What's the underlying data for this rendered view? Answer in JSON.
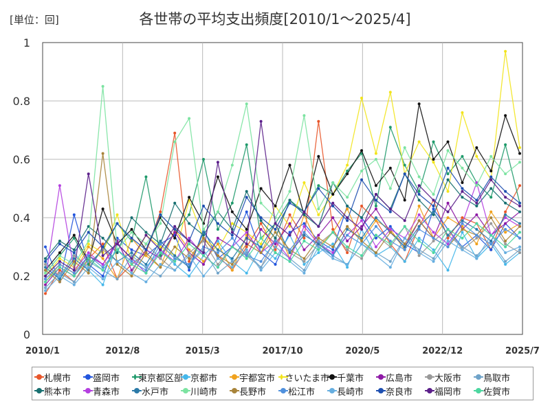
{
  "header": {
    "unit_label": "[単位：回]",
    "title": "各世帯の平均支出頻度[2010/1～2025/4]"
  },
  "chart_data": {
    "type": "line",
    "title": "各世帯の平均支出頻度[2010/1～2025/4]",
    "unit": "[単位：回]",
    "xlabel": "",
    "ylabel": "",
    "x_ticks": [
      "2010/1",
      "2012/8",
      "2015/3",
      "2017/10",
      "2020/5",
      "2022/12",
      "2025/7"
    ],
    "x_range": [
      "2010/1",
      "2025/7"
    ],
    "y_ticks": [
      "0",
      "0.2",
      "0.4",
      "0.6",
      "0.8",
      "1"
    ],
    "ylim": [
      0,
      1
    ],
    "grid": true,
    "legend_position": "bottom",
    "series": [
      {
        "name": "札幌市",
        "color": "#e8562a",
        "values": [
          0.14,
          0.22,
          0.18,
          0.26,
          0.31,
          0.19,
          0.24,
          0.28,
          0.42,
          0.69,
          0.25,
          0.33,
          0.27,
          0.22,
          0.3,
          0.38,
          0.29,
          0.41,
          0.33,
          0.73,
          0.36,
          0.28,
          0.44,
          0.39,
          0.31,
          0.25,
          0.37,
          0.46,
          0.33,
          0.4,
          0.38,
          0.29,
          0.42,
          0.51
        ]
      },
      {
        "name": "盛岡市",
        "color": "#2255dd",
        "values": [
          0.3,
          0.18,
          0.41,
          0.24,
          0.2,
          0.33,
          0.29,
          0.27,
          0.31,
          0.34,
          0.22,
          0.36,
          0.26,
          0.3,
          0.42,
          0.28,
          0.24,
          0.35,
          0.38,
          0.32,
          0.29,
          0.44,
          0.4,
          0.33,
          0.37,
          0.31,
          0.28,
          0.43,
          0.36,
          0.3,
          0.34,
          0.29,
          0.38,
          0.33
        ]
      },
      {
        "name": "東京都区部",
        "color": "#1f9a6b",
        "values": [
          0.21,
          0.27,
          0.33,
          0.24,
          0.29,
          0.38,
          0.32,
          0.54,
          0.27,
          0.35,
          0.41,
          0.6,
          0.36,
          0.45,
          0.65,
          0.33,
          0.38,
          0.46,
          0.42,
          0.51,
          0.48,
          0.56,
          0.62,
          0.44,
          0.71,
          0.58,
          0.49,
          0.66,
          0.55,
          0.61,
          0.52,
          0.47,
          0.65,
          0.45
        ]
      },
      {
        "name": "京都市",
        "color": "#45b7ea",
        "values": [
          0.25,
          0.19,
          0.28,
          0.22,
          0.17,
          0.31,
          0.26,
          0.23,
          0.29,
          0.24,
          0.2,
          0.27,
          0.32,
          0.25,
          0.21,
          0.3,
          0.26,
          0.34,
          0.24,
          0.28,
          0.31,
          0.23,
          0.36,
          0.27,
          0.3,
          0.25,
          0.33,
          0.29,
          0.22,
          0.35,
          0.26,
          0.31,
          0.24,
          0.28
        ]
      },
      {
        "name": "宇都宮市",
        "color": "#f0a21e",
        "values": [
          0.18,
          0.24,
          0.21,
          0.3,
          0.26,
          0.19,
          0.33,
          0.27,
          0.23,
          0.36,
          0.29,
          0.25,
          0.31,
          0.22,
          0.34,
          0.28,
          0.38,
          0.26,
          0.41,
          0.3,
          0.35,
          0.43,
          0.32,
          0.39,
          0.36,
          0.29,
          0.44,
          0.33,
          0.4,
          0.37,
          0.31,
          0.42,
          0.35,
          0.38
        ]
      },
      {
        "name": "さいたま市",
        "color": "#f2e41c",
        "values": [
          0.2,
          0.26,
          0.23,
          0.31,
          0.28,
          0.41,
          0.25,
          0.34,
          0.3,
          0.27,
          0.46,
          0.33,
          0.29,
          0.38,
          0.35,
          0.31,
          0.44,
          0.37,
          0.52,
          0.41,
          0.48,
          0.58,
          0.81,
          0.62,
          0.83,
          0.55,
          0.66,
          0.59,
          0.49,
          0.76,
          0.61,
          0.53,
          0.97,
          0.64
        ]
      },
      {
        "name": "千葉市",
        "color": "#111111",
        "values": [
          0.22,
          0.28,
          0.34,
          0.25,
          0.43,
          0.31,
          0.36,
          0.29,
          0.4,
          0.33,
          0.47,
          0.38,
          0.54,
          0.42,
          0.36,
          0.5,
          0.44,
          0.58,
          0.41,
          0.61,
          0.48,
          0.55,
          0.63,
          0.51,
          0.57,
          0.46,
          0.79,
          0.6,
          0.66,
          0.52,
          0.64,
          0.56,
          0.75,
          0.62
        ]
      },
      {
        "name": "広島市",
        "color": "#8e1aa6",
        "values": [
          0.17,
          0.23,
          0.2,
          0.27,
          0.24,
          0.32,
          0.22,
          0.29,
          0.26,
          0.35,
          0.28,
          0.24,
          0.33,
          0.3,
          0.27,
          0.36,
          0.31,
          0.38,
          0.29,
          0.34,
          0.4,
          0.32,
          0.37,
          0.43,
          0.35,
          0.3,
          0.39,
          0.33,
          0.45,
          0.36,
          0.41,
          0.34,
          0.38,
          0.42
        ]
      },
      {
        "name": "大阪市",
        "color": "#999999",
        "values": [
          0.24,
          0.2,
          0.27,
          0.23,
          0.29,
          0.25,
          0.21,
          0.31,
          0.26,
          0.22,
          0.28,
          0.32,
          0.24,
          0.3,
          0.27,
          0.23,
          0.33,
          0.28,
          0.25,
          0.31,
          0.35,
          0.29,
          0.26,
          0.34,
          0.3,
          0.37,
          0.27,
          0.32,
          0.36,
          0.29,
          0.33,
          0.38,
          0.31,
          0.28
        ]
      },
      {
        "name": "鳥取市",
        "color": "#6fa3c9",
        "values": [
          0.16,
          0.21,
          0.18,
          0.25,
          0.22,
          0.19,
          0.27,
          0.23,
          0.2,
          0.26,
          0.24,
          0.29,
          0.21,
          0.25,
          0.28,
          0.23,
          0.3,
          0.26,
          0.22,
          0.32,
          0.27,
          0.24,
          0.31,
          0.28,
          0.25,
          0.33,
          0.29,
          0.26,
          0.34,
          0.3,
          0.27,
          0.32,
          0.25,
          0.29
        ]
      },
      {
        "name": "熊本市",
        "color": "#187070",
        "values": [
          0.26,
          0.32,
          0.29,
          0.37,
          0.33,
          0.28,
          0.4,
          0.35,
          0.31,
          0.45,
          0.38,
          0.34,
          0.42,
          0.36,
          0.49,
          0.39,
          0.33,
          0.46,
          0.41,
          0.37,
          0.52,
          0.44,
          0.4,
          0.48,
          0.43,
          0.55,
          0.46,
          0.41,
          0.53,
          0.47,
          0.44,
          0.5,
          0.45,
          0.42
        ]
      },
      {
        "name": "青森市",
        "color": "#b43fe0",
        "values": [
          0.19,
          0.51,
          0.22,
          0.28,
          0.24,
          0.31,
          0.26,
          0.21,
          0.29,
          0.25,
          0.33,
          0.27,
          0.23,
          0.3,
          0.35,
          0.28,
          0.32,
          0.26,
          0.37,
          0.31,
          0.28,
          0.34,
          0.39,
          0.3,
          0.36,
          0.33,
          0.41,
          0.35,
          0.31,
          0.38,
          0.52,
          0.34,
          0.4,
          0.37
        ]
      },
      {
        "name": "水戸市",
        "color": "#2b7aa8",
        "values": [
          0.23,
          0.19,
          0.26,
          0.22,
          0.3,
          0.25,
          0.28,
          0.24,
          0.32,
          0.27,
          0.23,
          0.35,
          0.29,
          0.26,
          0.33,
          0.3,
          0.38,
          0.28,
          0.34,
          0.31,
          0.27,
          0.36,
          0.33,
          0.4,
          0.35,
          0.3,
          0.37,
          0.42,
          0.34,
          0.39,
          0.36,
          0.32,
          0.41,
          0.38
        ]
      },
      {
        "name": "川崎市",
        "color": "#7ce3a1",
        "values": [
          0.21,
          0.27,
          0.24,
          0.32,
          0.85,
          0.29,
          0.35,
          0.31,
          0.38,
          0.66,
          0.74,
          0.36,
          0.42,
          0.58,
          0.79,
          0.45,
          0.4,
          0.49,
          0.75,
          0.43,
          0.52,
          0.47,
          0.56,
          0.6,
          0.5,
          0.64,
          0.54,
          0.48,
          0.63,
          0.57,
          0.51,
          0.61,
          0.55,
          0.59
        ]
      },
      {
        "name": "長野市",
        "color": "#a8843a",
        "values": [
          0.22,
          0.18,
          0.25,
          0.21,
          0.62,
          0.24,
          0.2,
          0.28,
          0.23,
          0.3,
          0.26,
          0.33,
          0.27,
          0.24,
          0.31,
          0.28,
          0.35,
          0.29,
          0.26,
          0.33,
          0.3,
          0.37,
          0.32,
          0.28,
          0.35,
          0.31,
          0.39,
          0.33,
          0.3,
          0.36,
          0.34,
          0.4,
          0.32,
          0.37
        ]
      },
      {
        "name": "松江市",
        "color": "#4f90dd",
        "values": [
          0.19,
          0.24,
          0.21,
          0.27,
          0.23,
          0.29,
          0.25,
          0.22,
          0.31,
          0.26,
          0.24,
          0.3,
          0.28,
          0.33,
          0.27,
          0.25,
          0.32,
          0.29,
          0.35,
          0.3,
          0.27,
          0.34,
          0.31,
          0.37,
          0.32,
          0.29,
          0.36,
          0.33,
          0.3,
          0.38,
          0.34,
          0.31,
          0.36,
          0.33
        ]
      },
      {
        "name": "長崎市",
        "color": "#66aee0",
        "values": [
          0.15,
          0.2,
          0.17,
          0.23,
          0.19,
          0.25,
          0.21,
          0.18,
          0.24,
          0.22,
          0.27,
          0.2,
          0.26,
          0.23,
          0.29,
          0.22,
          0.28,
          0.25,
          0.21,
          0.3,
          0.26,
          0.24,
          0.31,
          0.27,
          0.23,
          0.33,
          0.28,
          0.25,
          0.32,
          0.29,
          0.26,
          0.34,
          0.28,
          0.3
        ]
      },
      {
        "name": "奈良市",
        "color": "#1e4fb0",
        "values": [
          0.25,
          0.31,
          0.28,
          0.35,
          0.3,
          0.38,
          0.33,
          0.29,
          0.41,
          0.36,
          0.32,
          0.44,
          0.38,
          0.34,
          0.47,
          0.4,
          0.36,
          0.45,
          0.42,
          0.5,
          0.44,
          0.39,
          0.53,
          0.46,
          0.42,
          0.55,
          0.48,
          0.44,
          0.57,
          0.5,
          0.46,
          0.54,
          0.49,
          0.45
        ]
      },
      {
        "name": "福岡市",
        "color": "#5b1f8a",
        "values": [
          0.2,
          0.25,
          0.22,
          0.55,
          0.27,
          0.31,
          0.26,
          0.34,
          0.29,
          0.37,
          0.32,
          0.28,
          0.59,
          0.35,
          0.31,
          0.73,
          0.38,
          0.34,
          0.42,
          0.37,
          0.45,
          0.4,
          0.36,
          0.48,
          0.43,
          0.39,
          0.51,
          0.46,
          0.42,
          0.49,
          0.45,
          0.53,
          0.47,
          0.44
        ]
      },
      {
        "name": "佐賀市",
        "color": "#4cd7a0",
        "values": [
          0.18,
          0.23,
          0.2,
          0.26,
          0.22,
          0.29,
          0.24,
          0.21,
          0.28,
          0.25,
          0.31,
          0.27,
          0.23,
          0.3,
          0.26,
          0.33,
          0.28,
          0.25,
          0.32,
          0.29,
          0.35,
          0.3,
          0.27,
          0.34,
          0.31,
          0.37,
          0.32,
          0.28,
          0.36,
          0.33,
          0.38,
          0.34,
          0.3,
          0.35
        ]
      }
    ]
  }
}
